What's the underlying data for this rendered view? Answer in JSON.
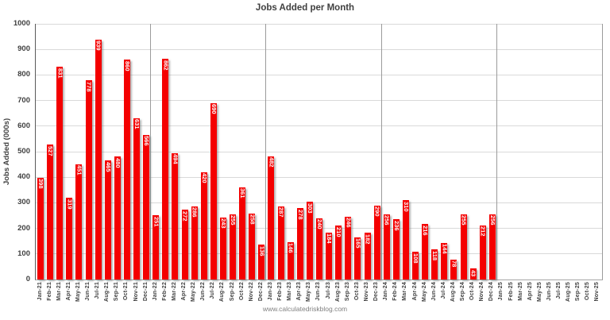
{
  "chart_data": {
    "type": "bar",
    "title": "Jobs Added per Month",
    "ylabel": "Jobs Added (000s)",
    "xlabel": "",
    "watermark": "www.calculatedriskblog.com",
    "ylim": [
      0,
      1000
    ],
    "yticks": [
      0,
      100,
      200,
      300,
      400,
      500,
      600,
      700,
      800,
      900,
      1000
    ],
    "grid": "horizontal",
    "legend": "none",
    "bar_color": "#f40000",
    "bar_label_color": "#ffffff",
    "grid_color": "#d9d9d9",
    "separator_color": "#9b9b9b",
    "separators_after_index": [
      11,
      23,
      35,
      47,
      58
    ],
    "categories": [
      "Jan-21",
      "Feb-21",
      "Mar-21",
      "Apr-21",
      "May-21",
      "Jun-21",
      "Jul-21",
      "Aug-21",
      "Sep-21",
      "Oct-21",
      "Nov-21",
      "Dec-21",
      "Jan-22",
      "Feb-22",
      "Mar-22",
      "Apr-22",
      "May-22",
      "Jun-22",
      "Jul-22",
      "Aug-22",
      "Sep-22",
      "Oct-22",
      "Nov-22",
      "Dec-22",
      "Jan-23",
      "Feb-23",
      "Mar-23",
      "Apr-23",
      "May-23",
      "Jun-23",
      "Jul-23",
      "Aug-23",
      "Sep-23",
      "Oct-23",
      "Nov-23",
      "Dec-23",
      "Jan-24",
      "Feb-24",
      "Mar-24",
      "Apr-24",
      "May-24",
      "Jun-24",
      "Jul-24",
      "Aug-24",
      "Sep-24",
      "Oct-24",
      "Nov-24",
      "Dec-24",
      "Jan-25",
      "Feb-25",
      "Mar-25",
      "Apr-25",
      "May-25",
      "Jun-25",
      "Jul-25",
      "Aug-25",
      "Sep-25",
      "Oct-25",
      "Nov-25"
    ],
    "values": [
      398,
      527,
      831,
      319,
      451,
      778,
      939,
      465,
      480,
      860,
      631,
      566,
      251,
      862,
      494,
      272,
      286,
      420,
      690,
      243,
      255,
      361,
      258,
      136,
      482,
      287,
      146,
      278,
      303,
      240,
      184,
      210,
      246,
      165,
      182,
      290,
      256,
      236,
      310,
      108,
      216,
      118,
      144,
      78,
      255,
      43,
      212,
      256,
      null,
      null,
      null,
      null,
      null,
      null,
      null,
      null,
      null,
      null,
      null
    ]
  }
}
